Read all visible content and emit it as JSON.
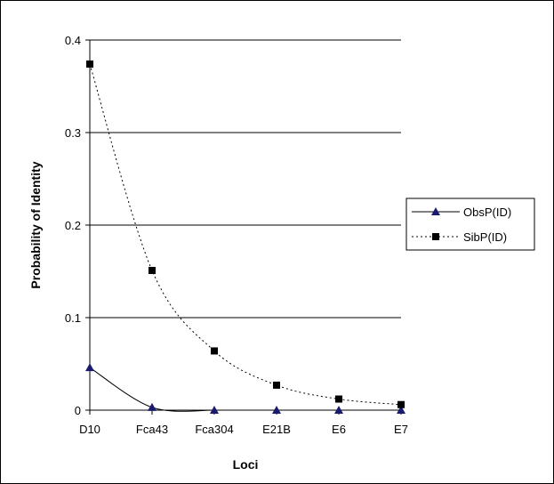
{
  "chart_data": {
    "type": "line",
    "xlabel": "Loci",
    "ylabel": "Probability of Identity",
    "categories": [
      "D10",
      "Fca43",
      "Fca304",
      "E21B",
      "E6",
      "E7"
    ],
    "ylim": [
      0,
      0.4
    ],
    "yticks": [
      "0",
      "0.1",
      "0.2",
      "0.3",
      "0.4"
    ],
    "grid": "horizontal",
    "legend_position": "right",
    "series": [
      {
        "name": "ObsP(ID)",
        "values": [
          0.046,
          0.003,
          0.0,
          0.0,
          0.0,
          0.0
        ],
        "color": "#000000",
        "marker": "triangle",
        "marker_color": "#1a1a6e",
        "line_style": "solid"
      },
      {
        "name": "SibP(ID)",
        "values": [
          0.374,
          0.151,
          0.064,
          0.027,
          0.012,
          0.006
        ],
        "color": "#000000",
        "marker": "square",
        "marker_color": "#000000",
        "line_style": "dotted"
      }
    ]
  }
}
